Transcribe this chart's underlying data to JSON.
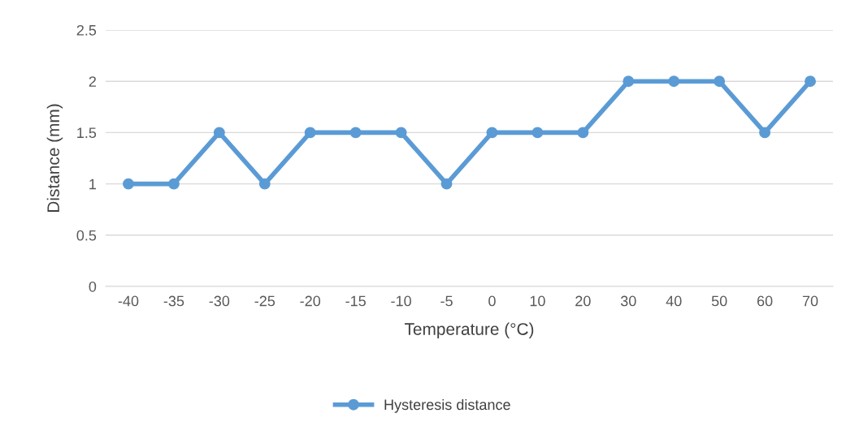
{
  "chart_data": {
    "type": "line",
    "xlabel": "Temperature (°C)",
    "ylabel": "Distance (mm)",
    "categories": [
      "-40",
      "-35",
      "-30",
      "-25",
      "-20",
      "-15",
      "-10",
      "-5",
      "0",
      "10",
      "20",
      "30",
      "40",
      "50",
      "60",
      "70"
    ],
    "series": [
      {
        "name": "Hysteresis distance",
        "color": "#5b9bd5",
        "values": [
          1,
          1,
          1.5,
          1,
          1.5,
          1.5,
          1.5,
          1,
          1.5,
          1.5,
          1.5,
          2,
          2,
          2,
          1.5,
          2
        ]
      }
    ],
    "ylim": [
      0,
      2.5
    ],
    "yticks": [
      0,
      0.5,
      1,
      1.5,
      2,
      2.5
    ],
    "grid": "y",
    "legend": "bottom",
    "marker": "circle",
    "line_style": "solid"
  }
}
